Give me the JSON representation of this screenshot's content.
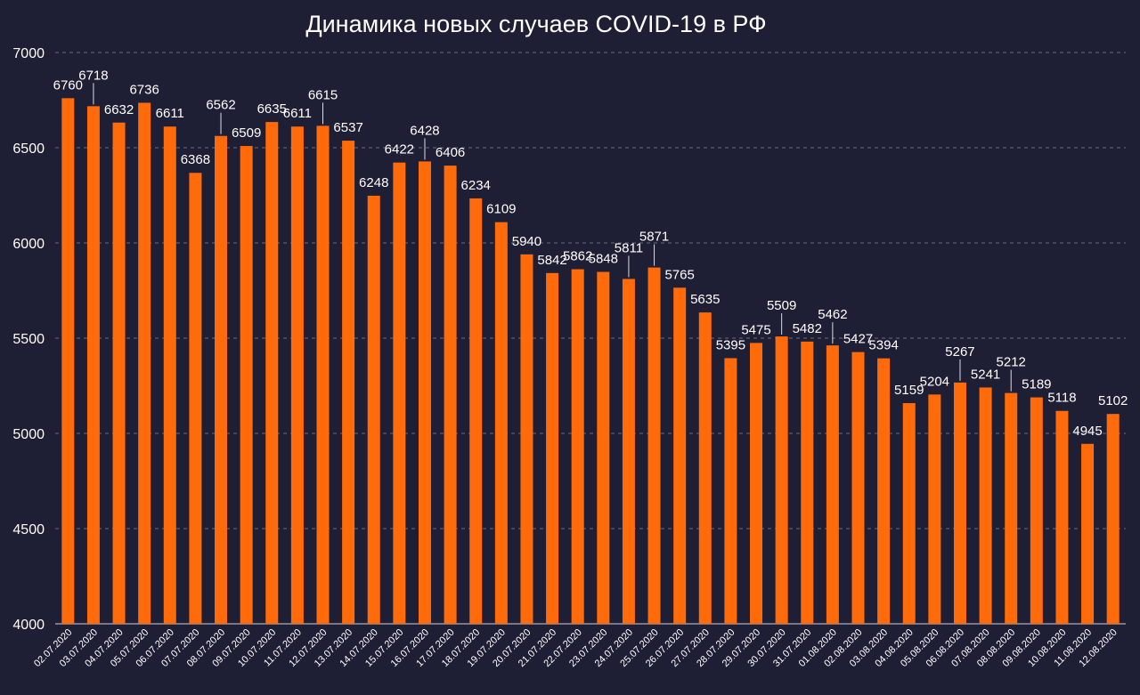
{
  "chart_data": {
    "type": "bar",
    "title": "Динамика новых случаев COVID-19 в РФ",
    "categories": [
      "02.07.2020",
      "03.07.2020",
      "04.07.2020",
      "05.07.2020",
      "06.07.2020",
      "07.07.2020",
      "08.07.2020",
      "09.07.2020",
      "10.07.2020",
      "11.07.2020",
      "12.07.2020",
      "13.07.2020",
      "14.07.2020",
      "15.07.2020",
      "16.07.2020",
      "17.07.2020",
      "18.07.2020",
      "19.07.2020",
      "20.07.2020",
      "21.07.2020",
      "22.07.2020",
      "23.07.2020",
      "24.07.2020",
      "25.07.2020",
      "26.07.2020",
      "27.07.2020",
      "28.07.2020",
      "29.07.2020",
      "30.07.2020",
      "31.07.2020",
      "01.08.2020",
      "02.08.2020",
      "03.08.2020",
      "04.08.2020",
      "05.08.2020",
      "06.08.2020",
      "07.08.2020",
      "08.08.2020",
      "09.08.2020",
      "10.08.2020",
      "11.08.2020",
      "12.08.2020"
    ],
    "values": [
      6760,
      6718,
      6632,
      6736,
      6611,
      6368,
      6562,
      6509,
      6635,
      6611,
      6615,
      6537,
      6248,
      6422,
      6428,
      6406,
      6234,
      6109,
      5940,
      5842,
      5862,
      5848,
      5811,
      5871,
      5765,
      5635,
      5395,
      5475,
      5509,
      5482,
      5462,
      5427,
      5394,
      5159,
      5204,
      5267,
      5241,
      5212,
      5189,
      5118,
      4945,
      5102
    ],
    "ylim": [
      4000,
      7000
    ],
    "yticks": [
      4000,
      4500,
      5000,
      5500,
      6000,
      6500,
      7000
    ],
    "xlabel": "",
    "ylabel": "",
    "grid": true,
    "bar_color": "#ff6b0a",
    "background_color": "#1e1f35"
  }
}
